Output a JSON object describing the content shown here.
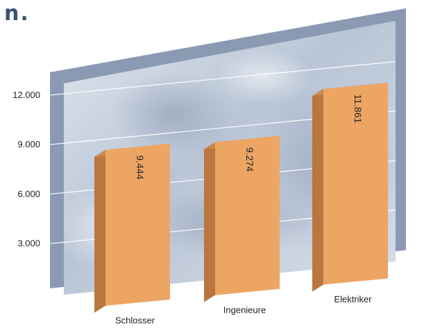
{
  "page": {
    "title_fragment": "n."
  },
  "colors": {
    "bar_front": "#eda564",
    "bar_side": "#b9773f",
    "bar_top": "#c98a4d",
    "panel_back": "#8b9ab3",
    "panel_front": "#c9d3e1",
    "gridline": "#ffffff",
    "title": "#3b5375"
  },
  "chart_data": {
    "type": "bar",
    "categories": [
      "Schlosser",
      "Ingenieure",
      "Elektriker"
    ],
    "values": [
      9444,
      9274,
      11861
    ],
    "value_labels": [
      "9.444",
      "9.274",
      "11.861"
    ],
    "yticks": [
      3000,
      6000,
      9000,
      12000
    ],
    "ytick_labels": [
      "3.000",
      "6.000",
      "9.000",
      "12.000"
    ],
    "ylim": [
      0,
      15000
    ],
    "grid": true,
    "title": "",
    "xlabel": "",
    "ylabel": ""
  }
}
